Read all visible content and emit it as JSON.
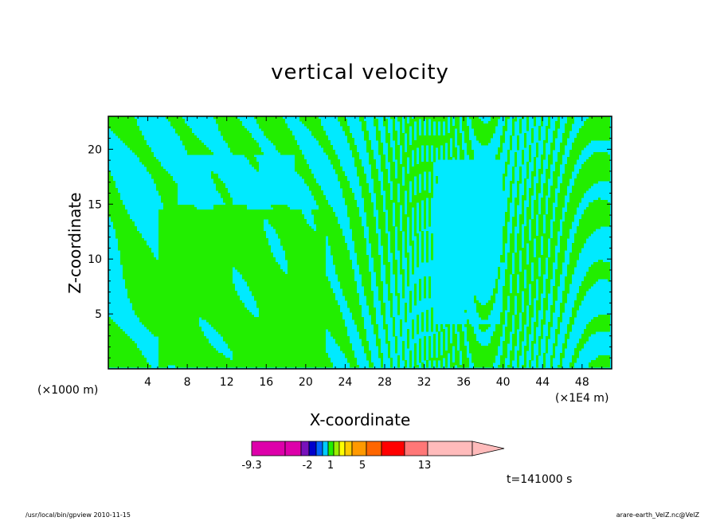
{
  "chart_data": {
    "type": "heatmap",
    "title": "vertical velocity",
    "xlabel": "X-coordinate",
    "ylabel": "Z-coordinate",
    "x_unit_label": "(×1000 m)",
    "x_scale_label": "(×1E4 m)",
    "time_label": "t=141000 s",
    "xlim": [
      0,
      51
    ],
    "ylim": [
      0,
      23
    ],
    "x_ticks": [
      4,
      8,
      12,
      16,
      20,
      24,
      28,
      32,
      36,
      40,
      44,
      48
    ],
    "y_ticks": [
      5,
      10,
      15,
      20
    ],
    "fill_colors": {
      "negative": "#00eaff",
      "positive": "#22ee00"
    },
    "colorbar": {
      "labels": [
        {
          "value": -9.3,
          "text": "-9.3"
        },
        {
          "value": -2,
          "text": "-2"
        },
        {
          "value": 1,
          "text": "1"
        },
        {
          "value": 5,
          "text": "5"
        },
        {
          "value": 13,
          "text": "13"
        }
      ],
      "colors": [
        "#dd00aa",
        "#dd00aa",
        "#7711bb",
        "#0000cc",
        "#0066ff",
        "#00ccff",
        "#22ee00",
        "#99ee00",
        "#ffff00",
        "#ffcc00",
        "#ff9900",
        "#ff6600",
        "#ff0000",
        "#ff7777",
        "#ffbbbb"
      ]
    }
  },
  "footer": {
    "left": "/usr/local/bin/gpview  2010-11-15",
    "right": "arare-earth_VelZ.nc@VelZ"
  }
}
